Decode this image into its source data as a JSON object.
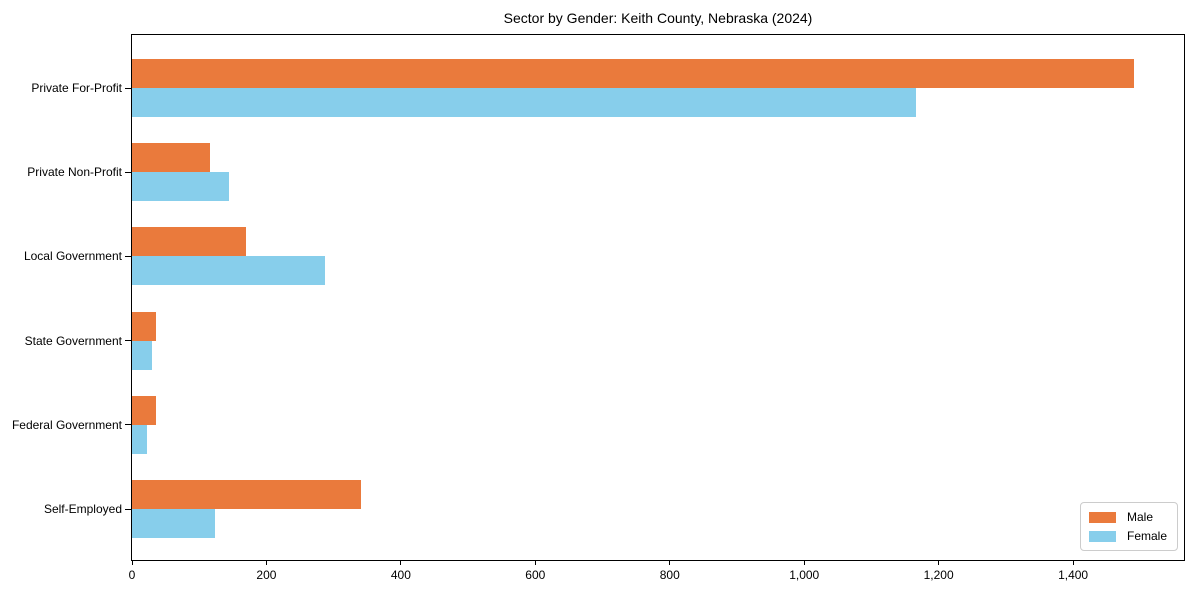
{
  "chart_data": {
    "type": "bar",
    "orientation": "horizontal",
    "title": "Sector by Gender: Keith County, Nebraska (2024)",
    "categories": [
      "Private For-Profit",
      "Private Non-Profit",
      "Local Government",
      "State Government",
      "Federal Government",
      "Self-Employed"
    ],
    "series": [
      {
        "name": "Male",
        "color": "#EA7A3C",
        "values": [
          1490,
          116,
          170,
          35,
          35,
          341
        ]
      },
      {
        "name": "Female",
        "color": "#87CEEB",
        "values": [
          1167,
          144,
          287,
          30,
          23,
          124
        ]
      }
    ],
    "xlabel": "",
    "ylabel": "",
    "xlim": [
      0,
      1565
    ],
    "xticks": [
      0,
      200,
      400,
      600,
      800,
      1000,
      1200,
      1400
    ],
    "xtick_labels": [
      "0",
      "200",
      "400",
      "600",
      "800",
      "1,000",
      "1,200",
      "1,400"
    ],
    "grid": false,
    "legend": {
      "position": "lower right",
      "entries": [
        "Male",
        "Female"
      ]
    },
    "colors": {
      "background": "#ffffff",
      "spine": "#000000",
      "legend_border": "#cccccc"
    }
  }
}
